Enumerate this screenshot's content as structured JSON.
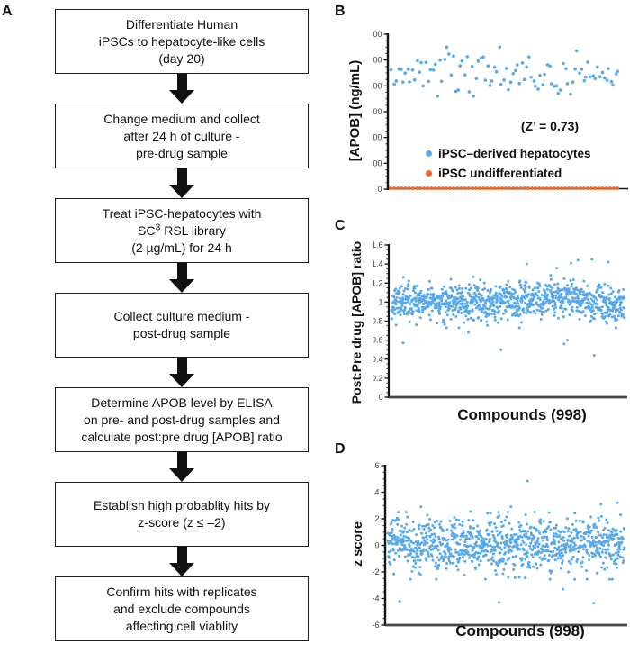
{
  "figure_caption": "",
  "flowchart": {
    "label": "A",
    "boxes": [
      {
        "lines": [
          "Differentiate Human",
          "iPSCs to hepatocyte-like cells",
          "(day 20)"
        ]
      },
      {
        "lines": [
          "Change medium and collect",
          "after 24 h of culture -",
          "pre-drug sample"
        ]
      },
      {
        "lines": [
          "Treat iPSC-hepatocytes with",
          {
            "parts": [
              {
                "t": "SC"
              },
              {
                "t": "3",
                "sup": true
              },
              {
                "t": " RSL library"
              }
            ]
          },
          "(2 µg/mL) for 24 h"
        ]
      },
      {
        "lines": [
          "Collect culture medium -",
          "post-drug sample"
        ]
      },
      {
        "lines": [
          "Determine APOB level by ELISA",
          "on pre- and post-drug samples and",
          "calculate post:pre drug [APOB] ratio"
        ]
      },
      {
        "lines": [
          "Establish high probablity hits by",
          "z-score (z ≤ –2)"
        ]
      },
      {
        "lines": [
          "Confirm hits with replicates",
          "and exclude compounds",
          "affecting cell viablity"
        ]
      }
    ]
  },
  "chart_data": [
    {
      "panel_letter": "B",
      "type": "scatter",
      "title": "",
      "xlabel": "",
      "ylabel": "[APOB] (ng/mL)",
      "ylim": [
        0,
        1200
      ],
      "yticks": [
        0,
        200,
        400,
        600,
        800,
        1000,
        1200
      ],
      "minor_tick_step": 50,
      "grid": false,
      "annotation": "(Z’ = 0.73)",
      "legend_position": "inside-lower-middle",
      "legend": [
        {
          "label": "iPSC–derived hepatocytes",
          "color": "#58A9EC"
        },
        {
          "label": "iPSC undifferentiated",
          "color": "#F26522"
        }
      ],
      "series": [
        {
          "name": "iPSC-derived hepatocytes",
          "color": "#58A9EC",
          "n": 100,
          "distribution": "normal",
          "mean": 895,
          "sd": 82,
          "clip": [
            720,
            1100
          ],
          "seed": 7,
          "radius": 1.8
        },
        {
          "name": "iPSC undifferentiated",
          "color": "#F26522",
          "n": 62,
          "distribution": "baseline",
          "value": 0,
          "radius": 1.9
        }
      ]
    },
    {
      "panel_letter": "C",
      "type": "scatter",
      "title": "",
      "xlabel": "Compounds (998)",
      "ylabel": "Post:Pre drug [APOB] ratio",
      "n_compounds": 998,
      "ylim": [
        0,
        1.6
      ],
      "yticks": [
        0,
        0.2,
        0.4,
        0.6,
        0.8,
        1,
        1.2,
        1.4,
        1.6
      ],
      "minor_tick_step": 0.05,
      "grid": false,
      "series": [
        {
          "name": "compounds",
          "color": "#58A9EC",
          "n": 980,
          "distribution": "normal",
          "mean": 1.005,
          "sd": 0.095,
          "clip": [
            0.73,
            1.36
          ],
          "seed": 11,
          "radius": 1.5,
          "trend_bumps": [
            [
              0.7,
              0.13,
              0.065
            ],
            [
              0.97,
              0.08,
              -0.06
            ],
            [
              0.42,
              0.18,
              -0.015
            ]
          ],
          "outliers": [
            [
              0.05,
              0.57
            ],
            [
              0.33,
              0.68
            ],
            [
              0.47,
              0.5
            ],
            [
              0.58,
              1.4
            ],
            [
              0.74,
              0.56
            ],
            [
              0.755,
              0.6
            ],
            [
              0.77,
              1.41
            ],
            [
              0.8,
              1.44
            ],
            [
              0.86,
              1.45
            ],
            [
              0.87,
              0.44
            ],
            [
              0.93,
              1.42
            ]
          ]
        }
      ]
    },
    {
      "panel_letter": "D",
      "type": "scatter",
      "title": "",
      "xlabel": "Compounds (998)",
      "ylabel": "z score",
      "n_compounds": 998,
      "ylim": [
        -6,
        6
      ],
      "yticks": [
        -6,
        -4,
        -2,
        0,
        2,
        4,
        6
      ],
      "minor_tick_step": 0.5,
      "grid": false,
      "series": [
        {
          "name": "compounds",
          "color": "#58A9EC",
          "n": 980,
          "distribution": "normal",
          "mean": 0.05,
          "sd": 1.0,
          "clip": [
            -2.55,
            2.5
          ],
          "seed": 13,
          "radius": 1.5,
          "outliers": [
            [
              0.05,
              -4.2
            ],
            [
              0.14,
              2.9
            ],
            [
              0.35,
              2.55
            ],
            [
              0.47,
              -4.3
            ],
            [
              0.52,
              2.9
            ],
            [
              0.59,
              4.85
            ],
            [
              0.74,
              -3.3
            ],
            [
              0.87,
              -4.35
            ],
            [
              0.9,
              3.1
            ],
            [
              0.97,
              3.2
            ]
          ]
        }
      ]
    }
  ]
}
